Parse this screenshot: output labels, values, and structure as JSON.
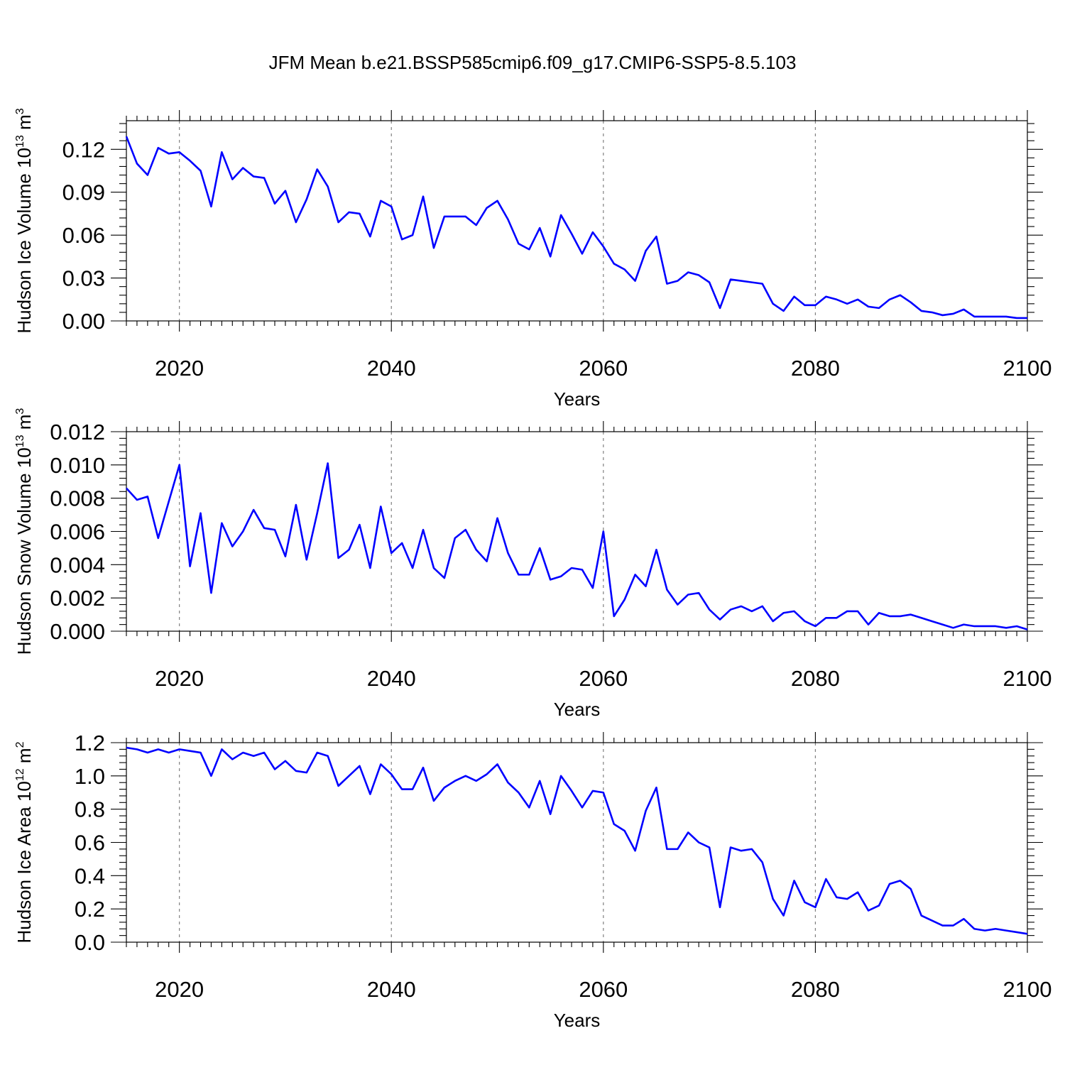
{
  "title": "JFM Mean b.e21.BSSP585cmip6.f09_g17.CMIP6-SSP5-8.5.103",
  "colors": {
    "line": "#0000ff",
    "axis": "#000000",
    "grid": "#808080"
  },
  "chart_data": [
    {
      "type": "line",
      "ylabel": {
        "text": "Hudson Ice Volume 10",
        "exp": "13",
        "unit": " m",
        "unit_exp": "3"
      },
      "xlabel": "Years",
      "xlim": [
        2015,
        2100
      ],
      "ylim": [
        0.0,
        0.14
      ],
      "xticks": [
        2020,
        2040,
        2060,
        2080,
        2100
      ],
      "xtick_labels": [
        "2020",
        "2040",
        "2060",
        "2080",
        "2100"
      ],
      "yticks": [
        0.0,
        0.03,
        0.06,
        0.09,
        0.12
      ],
      "ytick_labels": [
        "0.00",
        "0.03",
        "0.06",
        "0.09",
        "0.12"
      ],
      "grid": "vertical dashed at major x ticks",
      "series": [
        {
          "name": "Ice Volume",
          "x_start": 2015,
          "values": [
            0.129,
            0.11,
            0.102,
            0.121,
            0.117,
            0.118,
            0.112,
            0.105,
            0.08,
            0.118,
            0.099,
            0.107,
            0.101,
            0.1,
            0.082,
            0.091,
            0.069,
            0.085,
            0.106,
            0.094,
            0.069,
            0.076,
            0.075,
            0.059,
            0.084,
            0.08,
            0.057,
            0.06,
            0.087,
            0.051,
            0.073,
            0.073,
            0.073,
            0.067,
            0.079,
            0.084,
            0.071,
            0.054,
            0.05,
            0.065,
            0.045,
            0.074,
            0.061,
            0.047,
            0.062,
            0.052,
            0.04,
            0.036,
            0.028,
            0.049,
            0.059,
            0.026,
            0.028,
            0.034,
            0.032,
            0.027,
            0.009,
            0.029,
            0.028,
            0.027,
            0.026,
            0.012,
            0.007,
            0.017,
            0.011,
            0.011,
            0.017,
            0.015,
            0.012,
            0.015,
            0.01,
            0.009,
            0.015,
            0.018,
            0.013,
            0.007,
            0.006,
            0.004,
            0.005,
            0.008,
            0.003,
            0.003,
            0.003,
            0.003,
            0.002,
            0.002
          ]
        }
      ]
    },
    {
      "type": "line",
      "ylabel": {
        "text": "Hudson Snow Volume 10",
        "exp": "13",
        "unit": " m",
        "unit_exp": "3"
      },
      "xlabel": "Years",
      "xlim": [
        2015,
        2100
      ],
      "ylim": [
        0.0,
        0.012
      ],
      "xticks": [
        2020,
        2040,
        2060,
        2080,
        2100
      ],
      "xtick_labels": [
        "2020",
        "2040",
        "2060",
        "2080",
        "2100"
      ],
      "yticks": [
        0.0,
        0.002,
        0.004,
        0.006,
        0.008,
        0.01,
        0.012
      ],
      "ytick_labels": [
        "0.000",
        "0.002",
        "0.004",
        "0.006",
        "0.008",
        "0.010",
        "0.012"
      ],
      "grid": "vertical dashed at major x ticks",
      "series": [
        {
          "name": "Snow Volume",
          "x_start": 2015,
          "values": [
            0.0086,
            0.0079,
            0.0081,
            0.0056,
            0.0078,
            0.01,
            0.0039,
            0.0071,
            0.0023,
            0.0065,
            0.0051,
            0.006,
            0.0073,
            0.0062,
            0.0061,
            0.0045,
            0.0076,
            0.0043,
            0.0071,
            0.0101,
            0.0044,
            0.0049,
            0.0064,
            0.0038,
            0.0075,
            0.0047,
            0.0053,
            0.0038,
            0.0061,
            0.0038,
            0.0032,
            0.0056,
            0.0061,
            0.0049,
            0.0042,
            0.0068,
            0.0047,
            0.0034,
            0.0034,
            0.005,
            0.0031,
            0.0033,
            0.0038,
            0.0037,
            0.0026,
            0.006,
            0.0009,
            0.0019,
            0.0034,
            0.0027,
            0.0049,
            0.0025,
            0.0016,
            0.0022,
            0.0023,
            0.0013,
            0.0007,
            0.0013,
            0.0015,
            0.0012,
            0.0015,
            0.0006,
            0.0011,
            0.0012,
            0.0006,
            0.0003,
            0.0008,
            0.0008,
            0.0012,
            0.0012,
            0.0004,
            0.0011,
            0.0009,
            0.0009,
            0.001,
            0.0008,
            0.0006,
            0.0004,
            0.0002,
            0.0004,
            0.0003,
            0.0003,
            0.0003,
            0.0002,
            0.0003,
            0.0001
          ]
        }
      ]
    },
    {
      "type": "line",
      "ylabel": {
        "text": "Hudson Ice Area 10",
        "exp": "12",
        "unit": " m",
        "unit_exp": "2"
      },
      "xlabel": "Years",
      "xlim": [
        2015,
        2100
      ],
      "ylim": [
        0.0,
        1.2
      ],
      "xticks": [
        2020,
        2040,
        2060,
        2080,
        2100
      ],
      "xtick_labels": [
        "2020",
        "2040",
        "2060",
        "2080",
        "2100"
      ],
      "yticks": [
        0.0,
        0.2,
        0.4,
        0.6,
        0.8,
        1.0,
        1.2
      ],
      "ytick_labels": [
        "0.0",
        "0.2",
        "0.4",
        "0.6",
        "0.8",
        "1.0",
        "1.2"
      ],
      "grid": "vertical dashed at major x ticks",
      "series": [
        {
          "name": "Ice Area",
          "x_start": 2015,
          "values": [
            1.17,
            1.16,
            1.14,
            1.16,
            1.14,
            1.16,
            1.15,
            1.14,
            1.0,
            1.16,
            1.1,
            1.14,
            1.12,
            1.14,
            1.04,
            1.09,
            1.03,
            1.02,
            1.14,
            1.12,
            0.94,
            1.0,
            1.06,
            0.89,
            1.07,
            1.01,
            0.92,
            0.92,
            1.05,
            0.85,
            0.93,
            0.97,
            1.0,
            0.97,
            1.01,
            1.07,
            0.96,
            0.9,
            0.81,
            0.97,
            0.77,
            1.0,
            0.91,
            0.81,
            0.91,
            0.9,
            0.71,
            0.67,
            0.55,
            0.79,
            0.93,
            0.56,
            0.56,
            0.66,
            0.6,
            0.57,
            0.21,
            0.57,
            0.55,
            0.56,
            0.48,
            0.26,
            0.16,
            0.37,
            0.24,
            0.21,
            0.38,
            0.27,
            0.26,
            0.3,
            0.19,
            0.22,
            0.35,
            0.37,
            0.32,
            0.16,
            0.13,
            0.1,
            0.1,
            0.14,
            0.08,
            0.07,
            0.08,
            0.07,
            0.06,
            0.05
          ]
        }
      ]
    }
  ]
}
